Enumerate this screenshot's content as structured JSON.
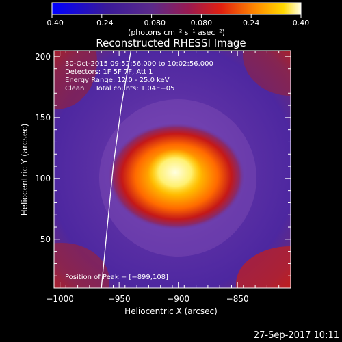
{
  "chart_data": {
    "type": "heatmap",
    "title": "Reconstructed RHESSI Image",
    "xlabel": "Heliocentric X (arcsec)",
    "ylabel": "Heliocentric Y (arcsec)",
    "xlim": [
      -1005,
      -805
    ],
    "ylim": [
      10,
      205
    ],
    "x_ticks": [
      "−1000",
      "−950",
      "−900",
      "−850"
    ],
    "x_tick_values": [
      -1000,
      -950,
      -900,
      -850
    ],
    "y_ticks": [
      "50",
      "100",
      "150",
      "200"
    ],
    "y_tick_values": [
      50,
      100,
      150,
      200
    ],
    "colorbar": {
      "min": -0.4,
      "max": 0.4,
      "tick_labels": [
        "−0.40",
        "−0.24",
        "−0.080",
        "0.080",
        "0.24",
        "0.40"
      ],
      "tick_values": [
        -0.4,
        -0.24,
        -0.08,
        0.08,
        0.24,
        0.4
      ],
      "unit_label": "(photons cm⁻² s⁻¹ asec⁻²)"
    },
    "annotations": [
      "30-Oct-2015 09:52:56.000 to 10:02:56.000",
      "Detectors: 1F 5F 7F, Att 1",
      "Energy Range: 12.0 - 25.0 keV",
      "Clean     Total counts: 1.04E+05"
    ],
    "peak_label": "Position of Peak = [−899,108]",
    "peak_position": [
      -899,
      108
    ],
    "limb_curve": [
      [
        -965,
        10
      ],
      [
        -960,
        60
      ],
      [
        -955,
        110
      ],
      [
        -948,
        160
      ],
      [
        -940,
        205
      ]
    ]
  },
  "footer": {
    "timestamp": "27-Sep-2017 10:11"
  }
}
